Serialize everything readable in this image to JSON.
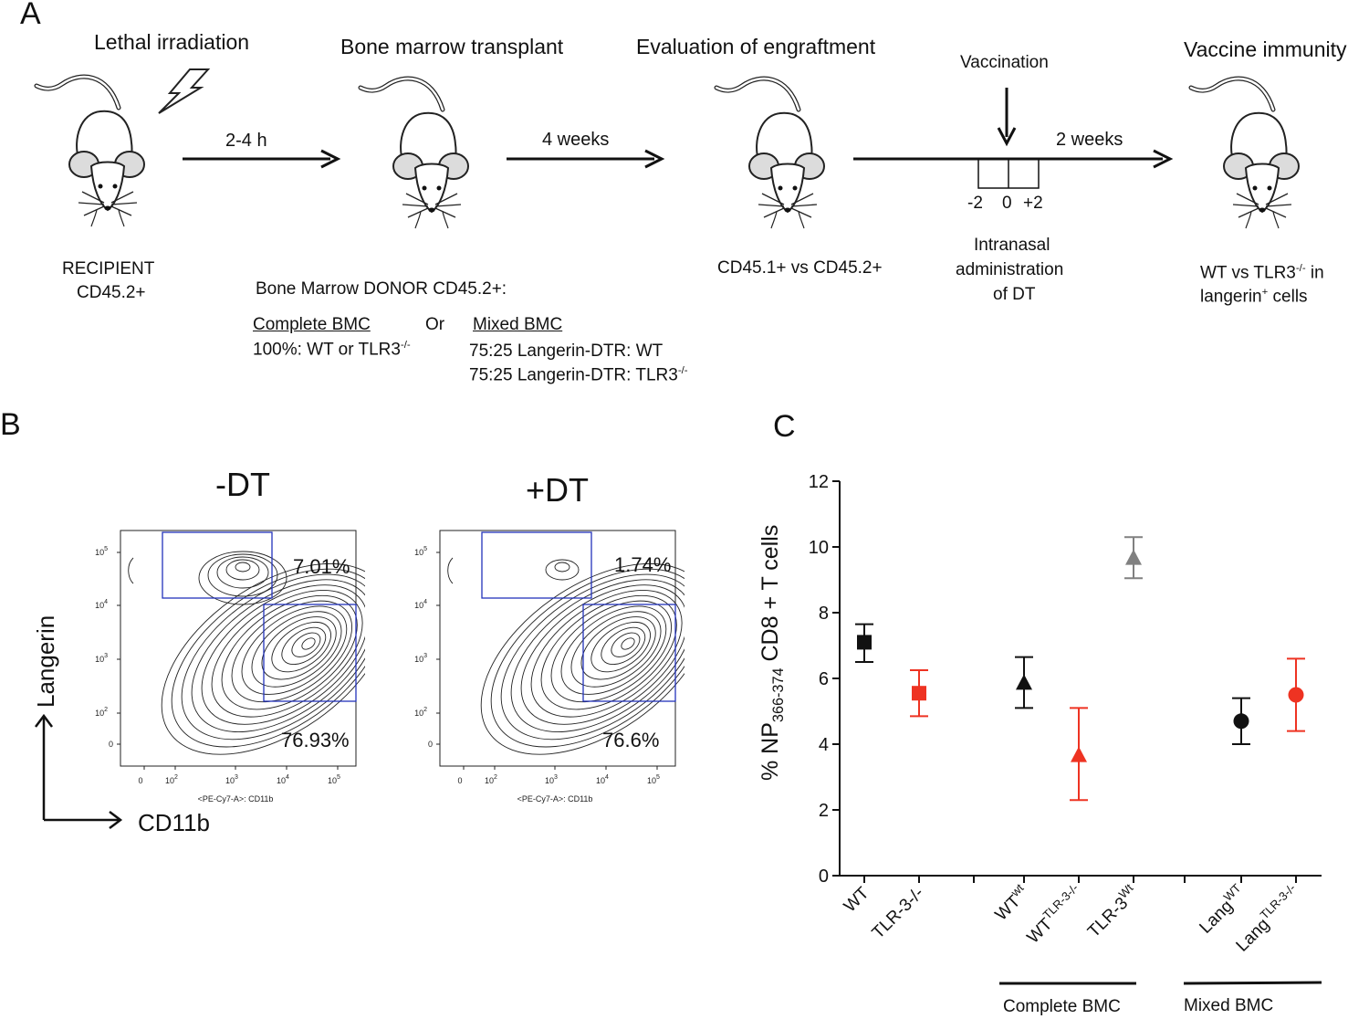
{
  "panelA": {
    "letter": "A",
    "stages": {
      "irradiation": "Lethal irradiation",
      "transplant": "Bone marrow transplant",
      "engraftment": "Evaluation of engraftment",
      "immunity": "Vaccine immunity"
    },
    "arrows": {
      "a1": "2-4 h",
      "a2": "4 weeks",
      "a3": "2 weeks"
    },
    "vaccination": "Vaccination",
    "ticks": [
      "-2",
      "0",
      "+2"
    ],
    "recipient": [
      "RECIPIENT",
      "CD45.2+"
    ],
    "donor_title": "Bone Marrow DONOR CD45.2+:",
    "complete_bmc": "Complete BMC",
    "or": "Or",
    "mixed_bmc": "Mixed BMC",
    "complete_line": {
      "text": "100%: WT or TLR3",
      "sup": "-/-"
    },
    "mixed_line1": "75:25 Langerin-DTR: WT",
    "mixed_line2": {
      "text": "75:25 Langerin-DTR: TLR3",
      "sup": "-/-"
    },
    "cd45": "CD45.1+ vs CD45.2+",
    "dt_admin": [
      "Intranasal",
      "administration",
      "of DT"
    ],
    "immunity_note": {
      "l1": "WT vs TLR3",
      "l1_sup": "-/-",
      "l1_end": " in",
      "l2": "langerin",
      "l2_sup": "+",
      "l2_end": " cells"
    }
  },
  "panelB": {
    "letter": "B",
    "plots": [
      {
        "title": "-DT",
        "upper_pct": "7.01%",
        "lower_pct": "76.93%",
        "xaxis_label": "<PE-Cy7-A>: CD11b"
      },
      {
        "title": "+DT",
        "upper_pct": "1.74%",
        "lower_pct": "76.6%",
        "xaxis_label": "<PE-Cy7-A>: CD11b"
      }
    ],
    "y_ticks": [
      "10",
      "10",
      "10",
      "10",
      "0"
    ],
    "y_tick_exp": [
      "5",
      "4",
      "3",
      "2",
      ""
    ],
    "x_ticks": [
      "0",
      "10",
      "10",
      "10",
      "10"
    ],
    "x_tick_exp": [
      "",
      "2",
      "3",
      "4",
      "5"
    ],
    "ylabel": "Langerin",
    "xlabel": "CD11b"
  },
  "panelC": {
    "letter": "C",
    "ylabel": {
      "pre": "% NP",
      "sub": "366-374",
      "post": " CD8 + T cells"
    },
    "group_labels": [
      "Complete BMC",
      "Mixed BMC"
    ],
    "colors": {
      "black": "#111111",
      "red": "#ee3322",
      "gray": "#808080"
    }
  },
  "chart_data": {
    "type": "scatter",
    "ylim": [
      0,
      12
    ],
    "yticks": [
      "0",
      "2",
      "4",
      "6",
      "8",
      "10",
      "12"
    ],
    "ylabel": "% NP366-374 CD8 + T cells",
    "points": [
      {
        "label": "WT",
        "sup": "",
        "mean": 7.1,
        "low": 6.5,
        "high": 7.65,
        "marker": "square",
        "color": "#111111"
      },
      {
        "label": "TLR-3-/-",
        "sup": "",
        "mean": 5.55,
        "low": 4.85,
        "high": 6.25,
        "marker": "square",
        "color": "#ee3322"
      },
      {
        "label": "WT",
        "sup": "wt",
        "mean": 5.85,
        "low": 5.1,
        "high": 6.65,
        "marker": "triangle",
        "color": "#111111"
      },
      {
        "label": "WT",
        "sup": "TLR-3-/-",
        "mean": 3.65,
        "low": 2.3,
        "high": 5.1,
        "marker": "triangle",
        "color": "#ee3322"
      },
      {
        "label": "TLR-3",
        "sup": "Wt",
        "mean": 9.65,
        "low": 9.05,
        "high": 10.3,
        "marker": "triangle",
        "color": "#808080"
      },
      {
        "label": "Lang",
        "sup": "WT",
        "mean": 4.7,
        "low": 4.0,
        "high": 5.4,
        "marker": "circle",
        "color": "#111111"
      },
      {
        "label": "Lang",
        "sup": "TLR-3-/-",
        "mean": 5.5,
        "low": 4.4,
        "high": 6.6,
        "marker": "circle",
        "color": "#ee3322"
      }
    ]
  }
}
